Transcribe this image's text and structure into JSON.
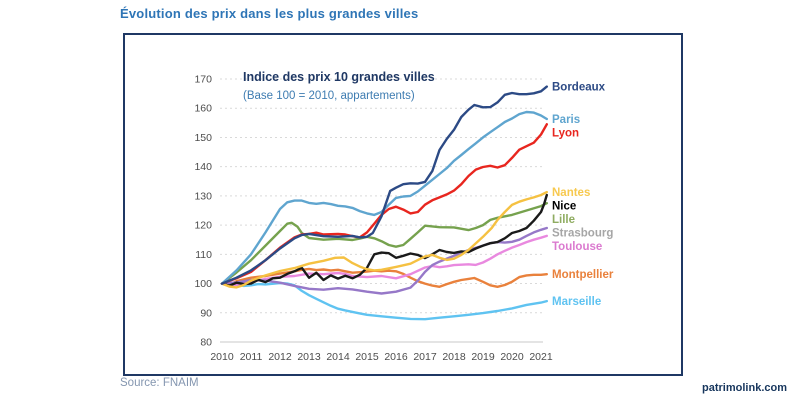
{
  "page": {
    "heading": "Évolution des prix dans les plus grandes villes",
    "source": "Source: FNAIM",
    "watermark": "patrimolink.com",
    "accent_colors": {
      "heading_blue": "#2E75B6",
      "box_border_navy": "#1F3864",
      "source_gray_blue": "#8496B0"
    }
  },
  "chart_data": {
    "type": "line",
    "title": "Indice des prix 10 grandes villes",
    "subtitle": "(Base 100 = 2010, appartements)",
    "xlabel": "",
    "ylabel": "",
    "x_ticks": [
      2010,
      2011,
      2012,
      2013,
      2014,
      2015,
      2016,
      2017,
      2018,
      2019,
      2020,
      2021
    ],
    "y_ticks": [
      80,
      90,
      100,
      110,
      120,
      130,
      140,
      150,
      160,
      170
    ],
    "ylim": [
      80,
      172
    ],
    "xlim": [
      2010,
      2021.3
    ],
    "grid": "horizontal-dashed",
    "legend_position": "labels-at-line-ends",
    "series": [
      {
        "name": "Bordeaux",
        "color": "#2C4A85",
        "label_color": "#2C4A85",
        "x": [
          2010,
          2010.5,
          2011,
          2011.5,
          2012,
          2012.5,
          2012.75,
          2013,
          2013.5,
          2014,
          2014.5,
          2014.75,
          2015,
          2015.2,
          2015.5,
          2015.8,
          2016,
          2016.25,
          2016.5,
          2016.75,
          2017,
          2017.25,
          2017.5,
          2017.75,
          2018,
          2018.25,
          2018.5,
          2018.7,
          2019,
          2019.25,
          2019.5,
          2019.75,
          2020,
          2020.25,
          2020.5,
          2020.75,
          2021,
          2021.2
        ],
        "values": [
          100,
          102,
          104.5,
          108,
          112,
          115.5,
          116.6,
          117,
          116.2,
          116,
          116.3,
          115.8,
          116,
          117.3,
          123,
          131.7,
          132.8,
          134,
          134.3,
          134.2,
          134.8,
          138.5,
          145.7,
          149.5,
          152.6,
          157,
          159.5,
          161.1,
          160.3,
          160.4,
          162,
          164.6,
          165.2,
          164.8,
          164.8,
          165.1,
          165.8,
          167.4
        ]
      },
      {
        "name": "Paris",
        "color": "#5FA5CF",
        "label_color": "#5FA5CF",
        "x": [
          2010,
          2010.5,
          2011,
          2011.5,
          2012,
          2012.25,
          2012.5,
          2012.75,
          2013,
          2013.25,
          2013.5,
          2013.75,
          2014,
          2014.25,
          2014.5,
          2014.75,
          2015,
          2015.25,
          2015.5,
          2015.75,
          2016,
          2016.25,
          2016.5,
          2016.75,
          2017,
          2017.25,
          2017.5,
          2017.75,
          2018,
          2018.25,
          2018.5,
          2018.75,
          2019,
          2019.25,
          2019.5,
          2019.75,
          2020,
          2020.25,
          2020.5,
          2020.75,
          2021,
          2021.2
        ],
        "values": [
          100,
          104.5,
          110,
          117.5,
          125.5,
          127.8,
          128.4,
          128.4,
          127.6,
          127.3,
          127.6,
          127.2,
          126.6,
          126.4,
          125.9,
          124.8,
          124,
          123.5,
          124.5,
          127,
          129.3,
          129.8,
          130,
          131.5,
          133.5,
          135.5,
          137.5,
          139.5,
          142,
          144,
          146,
          148,
          150,
          151.8,
          153.5,
          155.3,
          156.5,
          158,
          158.7,
          158.5,
          157.5,
          156.3
        ]
      },
      {
        "name": "Lyon",
        "color": "#E8261F",
        "label_color": "#E8261F",
        "x": [
          2010,
          2010.5,
          2011,
          2011.5,
          2012,
          2012.5,
          2012.75,
          2013,
          2013.25,
          2013.5,
          2013.75,
          2014,
          2014.25,
          2014.5,
          2014.75,
          2015,
          2015.25,
          2015.5,
          2015.75,
          2016,
          2016.25,
          2016.5,
          2016.75,
          2017,
          2017.25,
          2017.5,
          2017.75,
          2018,
          2018.25,
          2018.5,
          2018.75,
          2019,
          2019.25,
          2019.5,
          2019.75,
          2020,
          2020.25,
          2020.5,
          2020.75,
          2021,
          2021.2
        ],
        "values": [
          100,
          101.8,
          104,
          108,
          112.3,
          115.8,
          116.8,
          117,
          117.4,
          116.8,
          116.9,
          117,
          116.8,
          116.2,
          115.8,
          117.5,
          120.5,
          123.5,
          125.5,
          126.3,
          125.3,
          124,
          124.5,
          127,
          128.5,
          129.5,
          130.5,
          131.8,
          134,
          136.8,
          139,
          139.9,
          140.3,
          139.7,
          140.5,
          143,
          145.8,
          147,
          148.2,
          151,
          154.5
        ]
      },
      {
        "name": "Nantes",
        "color": "#F5C142",
        "label_color": "#F7C94F",
        "x": [
          2010,
          2010.25,
          2010.5,
          2010.75,
          2011,
          2011.5,
          2012,
          2012.5,
          2013,
          2013.5,
          2013.9,
          2014.2,
          2014.5,
          2014.75,
          2015,
          2015.25,
          2015.5,
          2016,
          2016.5,
          2017,
          2017.25,
          2017.5,
          2017.75,
          2018,
          2018.25,
          2018.5,
          2019,
          2019.3,
          2019.5,
          2019.75,
          2020,
          2020.25,
          2020.5,
          2020.75,
          2021,
          2021.2
        ],
        "values": [
          100,
          99,
          98.7,
          99.5,
          101,
          102.8,
          104.3,
          105.3,
          106.8,
          107.8,
          108.8,
          108.9,
          107,
          105.8,
          104.9,
          104.5,
          104.7,
          105.7,
          106.8,
          109.3,
          109.8,
          108.8,
          108.1,
          108.5,
          109.8,
          111.5,
          116,
          119,
          121.8,
          124.5,
          126.9,
          128,
          128.8,
          129.5,
          130.3,
          131.3
        ]
      },
      {
        "name": "Nice",
        "color": "#1a1a1a",
        "label_color": "#000000",
        "x": [
          2010,
          2010.25,
          2010.5,
          2010.75,
          2011,
          2011.25,
          2011.5,
          2011.75,
          2012,
          2012.25,
          2012.5,
          2012.75,
          2013,
          2013.25,
          2013.5,
          2013.75,
          2014,
          2014.25,
          2014.5,
          2014.75,
          2015,
          2015.25,
          2015.5,
          2015.75,
          2016,
          2016.25,
          2016.5,
          2016.75,
          2017,
          2017.25,
          2017.5,
          2017.75,
          2018,
          2018.25,
          2018.5,
          2018.75,
          2019,
          2019.25,
          2019.5,
          2019.75,
          2020,
          2020.25,
          2020.5,
          2020.75,
          2021,
          2021.1,
          2021.2
        ],
        "values": [
          100,
          99.3,
          100.3,
          99.8,
          100,
          101.3,
          100.5,
          101.8,
          102,
          103.3,
          104.2,
          105.4,
          102,
          103.7,
          101.2,
          102.8,
          101.7,
          102.7,
          101.8,
          103,
          105.4,
          110,
          110.6,
          110.4,
          108.8,
          109.5,
          110.3,
          109.8,
          108.7,
          110,
          111.5,
          110.8,
          110.5,
          111,
          110.8,
          112,
          113,
          113.8,
          114.2,
          115.5,
          117.3,
          118,
          119,
          121.5,
          124.5,
          127,
          130.3
        ]
      },
      {
        "name": "Lille",
        "color": "#76A24E",
        "label_color": "#8FAC61",
        "x": [
          2010,
          2010.5,
          2011,
          2011.5,
          2012,
          2012.25,
          2012.4,
          2012.6,
          2012.75,
          2013,
          2013.5,
          2014,
          2014.5,
          2014.75,
          2015,
          2015.25,
          2015.5,
          2015.75,
          2016,
          2016.25,
          2016.5,
          2016.75,
          2017,
          2017.5,
          2018,
          2018.5,
          2018.75,
          2019,
          2019.25,
          2019.5,
          2020,
          2020.5,
          2021,
          2021.2
        ],
        "values": [
          100,
          103.8,
          108,
          113,
          118,
          120.5,
          120.8,
          119.5,
          117.3,
          115.6,
          115,
          115.3,
          114.9,
          115.4,
          116,
          115.5,
          114.5,
          113.2,
          112.6,
          113.2,
          115.3,
          117.5,
          119.8,
          119.3,
          119.2,
          118.3,
          119,
          120,
          121.8,
          122.5,
          123.5,
          125,
          126.5,
          127.5
        ]
      },
      {
        "name": "Strasbourg",
        "color": "#9678C8",
        "label_color": "#A6A6A6",
        "x": [
          2010,
          2010.5,
          2011,
          2011.5,
          2012,
          2012.5,
          2013,
          2013.5,
          2014,
          2014.5,
          2015,
          2015.5,
          2016,
          2016.5,
          2016.75,
          2017,
          2017.25,
          2017.5,
          2018,
          2018.5,
          2019,
          2019.25,
          2019.5,
          2019.75,
          2020,
          2020.25,
          2020.5,
          2020.75,
          2021,
          2021.2
        ],
        "values": [
          100,
          100.4,
          101.2,
          101,
          100.3,
          99.2,
          98.2,
          97.9,
          98.4,
          98,
          97.2,
          96.6,
          97.2,
          98.6,
          101,
          104,
          106.3,
          107.5,
          109.5,
          111.5,
          113,
          113.8,
          114.2,
          114,
          114.3,
          115,
          116.3,
          117.5,
          118.4,
          119
        ]
      },
      {
        "name": "Toulouse",
        "color": "#E989DF",
        "label_color": "#DB7ACF",
        "x": [
          2010,
          2010.25,
          2010.5,
          2011,
          2011.5,
          2012,
          2012.5,
          2013,
          2013.5,
          2014,
          2014.25,
          2014.5,
          2015,
          2015.5,
          2016,
          2016.5,
          2017,
          2017.25,
          2017.5,
          2017.75,
          2018,
          2018.5,
          2018.75,
          2019,
          2019.25,
          2019.5,
          2019.75,
          2020,
          2020.25,
          2020.5,
          2020.75,
          2021,
          2021.2
        ],
        "values": [
          100,
          99.3,
          99.6,
          100.6,
          101.6,
          102.3,
          102.6,
          103.4,
          103.2,
          103.6,
          103.3,
          102.6,
          102.2,
          102.6,
          101.8,
          103.2,
          105.5,
          106,
          105.6,
          105.9,
          106.3,
          106.6,
          106.4,
          107.2,
          108.5,
          110,
          111.2,
          112.3,
          113.2,
          114.2,
          115,
          115.7,
          116.3
        ]
      },
      {
        "name": "Montpellier",
        "color": "#E9813C",
        "label_color": "#E9813C",
        "x": [
          2010,
          2010.25,
          2010.5,
          2011,
          2011.5,
          2012,
          2012.5,
          2012.75,
          2013,
          2013.25,
          2013.5,
          2013.75,
          2014,
          2014.25,
          2014.5,
          2014.75,
          2015,
          2015.25,
          2015.5,
          2015.75,
          2016,
          2016.25,
          2016.5,
          2016.75,
          2017,
          2017.25,
          2017.5,
          2017.75,
          2018,
          2018.25,
          2018.5,
          2018.7,
          2019,
          2019.25,
          2019.5,
          2019.75,
          2020,
          2020.25,
          2020.5,
          2020.75,
          2021,
          2021.2
        ],
        "values": [
          100,
          99.5,
          100.8,
          102,
          102.6,
          103.4,
          104.2,
          104.7,
          105,
          104.6,
          104.8,
          104.5,
          104.7,
          104.2,
          103.7,
          103.9,
          104.1,
          104.4,
          104.2,
          104.4,
          104.2,
          103.3,
          102,
          100.8,
          100,
          99.3,
          98.9,
          99.8,
          100.6,
          101.2,
          101.6,
          101.9,
          100.6,
          99.4,
          98.9,
          99.5,
          100.6,
          102.2,
          102.8,
          103,
          103,
          103.2
        ]
      },
      {
        "name": "Marseille",
        "color": "#5FC3F1",
        "label_color": "#5FC3F1",
        "x": [
          2010,
          2010.25,
          2010.5,
          2010.75,
          2011,
          2011.25,
          2011.5,
          2012,
          2012.25,
          2012.5,
          2012.75,
          2013,
          2013.25,
          2013.5,
          2013.75,
          2014,
          2014.25,
          2014.5,
          2014.75,
          2015,
          2015.5,
          2016,
          2016.5,
          2017,
          2017.5,
          2018,
          2018.5,
          2019,
          2019.5,
          2020,
          2020.5,
          2021,
          2021.2
        ],
        "values": [
          100,
          99.2,
          99.6,
          99.2,
          99.4,
          99.8,
          99.7,
          100.2,
          100,
          99.4,
          97.5,
          96,
          94.8,
          93.6,
          92.4,
          91.4,
          90.8,
          90.3,
          89.8,
          89.3,
          88.8,
          88.3,
          87.9,
          87.8,
          88.3,
          88.8,
          89.3,
          89.9,
          90.6,
          91.5,
          92.7,
          93.5,
          94
        ]
      }
    ]
  }
}
